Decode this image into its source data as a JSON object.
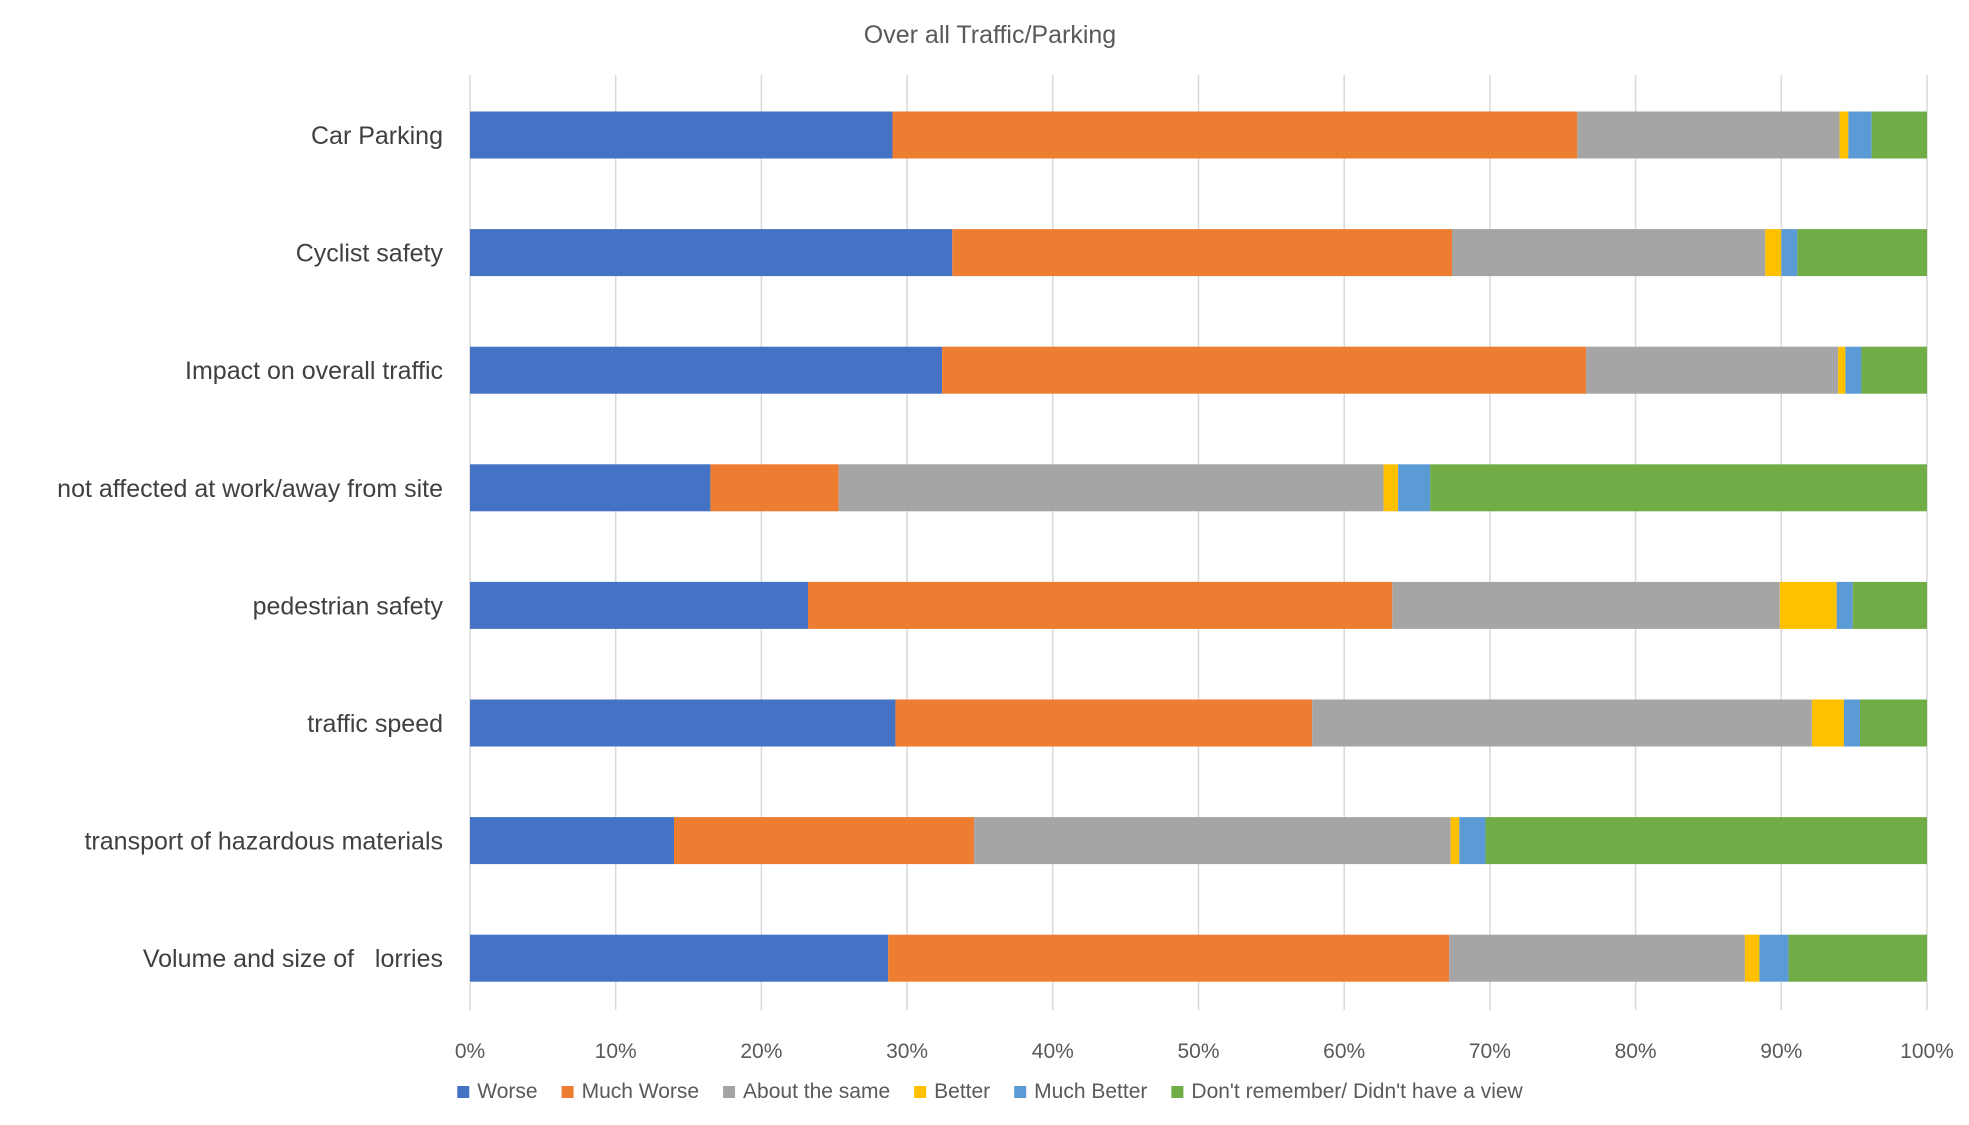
{
  "chart_data": {
    "type": "bar",
    "orientation": "horizontal",
    "stacked": "percent",
    "title": "Over all Traffic/Parking",
    "categories": [
      "Car Parking",
      "Cyclist safety",
      "Impact on overall traffic",
      "not affected at work/away from site",
      "pedestrian safety",
      "traffic speed",
      "transport of hazardous materials",
      "Volume and size of   lorries"
    ],
    "series": [
      {
        "name": "Worse",
        "color": "#4472C4",
        "values": [
          29.0,
          33.1,
          32.4,
          16.5,
          23.2,
          29.2,
          14.0,
          28.7
        ]
      },
      {
        "name": "Much Worse",
        "color": "#ED7D31",
        "values": [
          47.0,
          34.3,
          44.2,
          8.8,
          40.1,
          28.6,
          20.6,
          38.5
        ]
      },
      {
        "name": "About the same",
        "color": "#A5A5A5",
        "values": [
          18.0,
          21.5,
          17.3,
          37.4,
          26.6,
          34.3,
          32.7,
          20.3
        ]
      },
      {
        "name": "Better",
        "color": "#FFC000",
        "values": [
          0.6,
          1.1,
          0.5,
          1.0,
          3.9,
          2.2,
          0.6,
          1.0
        ]
      },
      {
        "name": "Much Better",
        "color": "#5B9BD5",
        "values": [
          1.6,
          1.1,
          1.1,
          2.2,
          1.1,
          1.1,
          1.8,
          2.0
        ]
      },
      {
        "name": "Don't remember/ Didn't have a view",
        "color": "#70AD47",
        "values": [
          3.8,
          8.9,
          4.5,
          34.1,
          5.1,
          4.6,
          30.3,
          9.5
        ]
      }
    ],
    "xlim": [
      0,
      100
    ],
    "x_ticks": [
      "0%",
      "10%",
      "20%",
      "30%",
      "40%",
      "50%",
      "60%",
      "70%",
      "80%",
      "90%",
      "100%"
    ],
    "xlabel": "",
    "ylabel": "",
    "grid": "vertical",
    "legend_position": "bottom"
  }
}
